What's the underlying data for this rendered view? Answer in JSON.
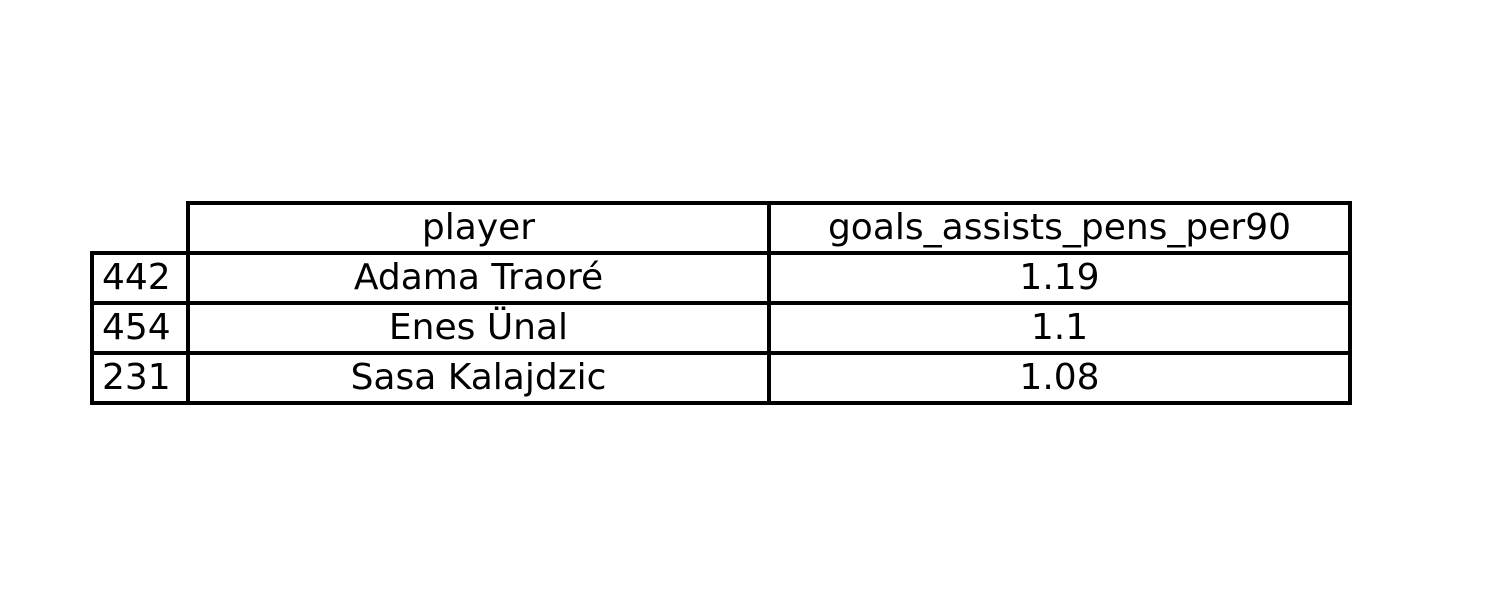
{
  "chart_data": {
    "type": "table",
    "columns": [
      "player",
      "goals_assists_pens_per90"
    ],
    "rows": [
      {
        "index": "442",
        "player": "Adama Traoré",
        "goals_assists_pens_per90": "1.19"
      },
      {
        "index": "454",
        "player": "Enes Ünal",
        "goals_assists_pens_per90": "1.1"
      },
      {
        "index": "231",
        "player": "Sasa Kalajdzic",
        "goals_assists_pens_per90": "1.08"
      }
    ]
  },
  "colors": {
    "border": "#000000",
    "text": "#000000",
    "background": "#ffffff"
  }
}
